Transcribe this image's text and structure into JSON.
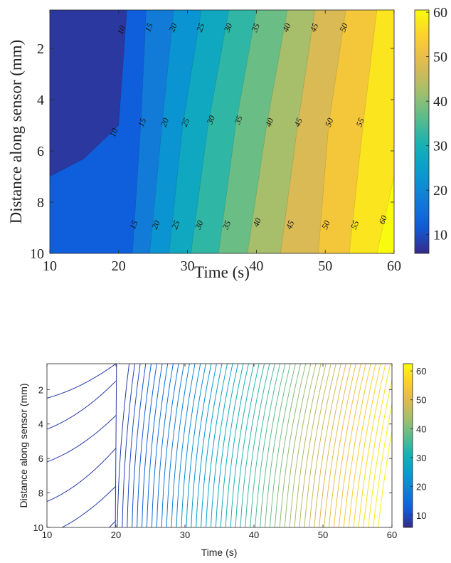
{
  "chart_data": [
    {
      "type": "contour-filled",
      "title": "",
      "xlabel": "Time (s)",
      "ylabel": "Distance along sensor (mm)",
      "xlim": [
        10,
        60
      ],
      "ylim": [
        0.5,
        10
      ],
      "y_reversed": true,
      "x_ticks": [
        "10",
        "20",
        "30",
        "40",
        "50",
        "60"
      ],
      "y_ticks": [
        "2",
        "4",
        "6",
        "8",
        "10"
      ],
      "colorbar_ticks": [
        "10",
        "20",
        "30",
        "40",
        "50",
        "60"
      ],
      "colorbar_range": [
        5.8,
        60.5
      ],
      "levels": [
        10,
        15,
        20,
        25,
        30,
        35,
        40,
        45,
        50,
        55,
        60
      ],
      "contour_lines": [
        {
          "level": 10,
          "points": [
            [
              21.2,
              0.5
            ],
            [
              20.0,
              5.0
            ],
            [
              15.0,
              6.3
            ],
            [
              10.0,
              7.0
            ]
          ]
        },
        {
          "level": 15,
          "points": [
            [
              24.0,
              0.5
            ],
            [
              23.2,
              5.0
            ],
            [
              22.0,
              10.0
            ]
          ]
        },
        {
          "level": 20,
          "points": [
            [
              28.0,
              0.5
            ],
            [
              26.3,
              5.0
            ],
            [
              24.5,
              10.0
            ]
          ]
        },
        {
          "level": 25,
          "points": [
            [
              32.0,
              0.5
            ],
            [
              29.3,
              5.0
            ],
            [
              27.3,
              10.0
            ]
          ]
        },
        {
          "level": 30,
          "points": [
            [
              36.0,
              0.5
            ],
            [
              33.0,
              5.0
            ],
            [
              30.5,
              10.0
            ]
          ]
        },
        {
          "level": 35,
          "points": [
            [
              40.0,
              0.5
            ],
            [
              37.0,
              5.0
            ],
            [
              34.5,
              10.0
            ]
          ]
        },
        {
          "level": 40,
          "points": [
            [
              44.5,
              0.5
            ],
            [
              41.5,
              5.0
            ],
            [
              38.7,
              10.0
            ]
          ]
        },
        {
          "level": 45,
          "points": [
            [
              48.5,
              0.5
            ],
            [
              46.0,
              5.0
            ],
            [
              43.5,
              10.0
            ]
          ]
        },
        {
          "level": 50,
          "points": [
            [
              53.0,
              0.5
            ],
            [
              50.5,
              5.0
            ],
            [
              49.0,
              10.0
            ]
          ]
        },
        {
          "level": 55,
          "points": [
            [
              57.5,
              0.5
            ],
            [
              55.5,
              5.0
            ],
            [
              53.5,
              10.0
            ]
          ]
        },
        {
          "level": 60,
          "points": [
            [
              60.5,
              0.5
            ],
            [
              60.0,
              7.0
            ],
            [
              57.5,
              10.0
            ]
          ]
        }
      ],
      "contour_labels": [
        {
          "text": "10",
          "x": 20.5,
          "y": 1.3
        },
        {
          "text": "15",
          "x": 24.5,
          "y": 1.2
        },
        {
          "text": "20",
          "x": 28.0,
          "y": 1.2
        },
        {
          "text": "25",
          "x": 32.0,
          "y": 1.2
        },
        {
          "text": "30",
          "x": 36.0,
          "y": 1.2
        },
        {
          "text": "35",
          "x": 40.0,
          "y": 1.2
        },
        {
          "text": "40",
          "x": 44.5,
          "y": 1.2
        },
        {
          "text": "45",
          "x": 48.5,
          "y": 1.2
        },
        {
          "text": "50",
          "x": 52.8,
          "y": 1.2
        },
        {
          "text": "10",
          "x": 19.4,
          "y": 5.3
        },
        {
          "text": "15",
          "x": 23.5,
          "y": 4.9
        },
        {
          "text": "20",
          "x": 26.8,
          "y": 4.9
        },
        {
          "text": "25",
          "x": 29.8,
          "y": 4.9
        },
        {
          "text": "30",
          "x": 33.5,
          "y": 4.8
        },
        {
          "text": "35",
          "x": 37.5,
          "y": 4.8
        },
        {
          "text": "40",
          "x": 42.0,
          "y": 4.9
        },
        {
          "text": "45",
          "x": 46.2,
          "y": 4.9
        },
        {
          "text": "50",
          "x": 50.7,
          "y": 4.9
        },
        {
          "text": "55",
          "x": 55.2,
          "y": 4.9
        },
        {
          "text": "15",
          "x": 22.3,
          "y": 8.9
        },
        {
          "text": "20",
          "x": 25.5,
          "y": 8.9
        },
        {
          "text": "25",
          "x": 28.4,
          "y": 8.9
        },
        {
          "text": "30",
          "x": 31.8,
          "y": 8.9
        },
        {
          "text": "35",
          "x": 35.8,
          "y": 8.9
        },
        {
          "text": "40",
          "x": 40.2,
          "y": 8.8
        },
        {
          "text": "45",
          "x": 45.0,
          "y": 8.9
        },
        {
          "text": "50",
          "x": 50.2,
          "y": 8.9
        },
        {
          "text": "55",
          "x": 54.4,
          "y": 8.9
        },
        {
          "text": "60",
          "x": 58.5,
          "y": 8.7
        }
      ]
    },
    {
      "type": "contour-lines",
      "title": "",
      "xlabel": "Time (s)",
      "ylabel": "Distance along sensor (mm)",
      "xlim": [
        10,
        60
      ],
      "ylim": [
        0.5,
        10
      ],
      "y_reversed": true,
      "x_ticks": [
        "10",
        "20",
        "30",
        "40",
        "50",
        "60"
      ],
      "y_ticks": [
        "2",
        "4",
        "6",
        "8",
        "10"
      ],
      "colorbar_ticks": [
        "10",
        "20",
        "30",
        "40",
        "50",
        "60"
      ],
      "colorbar_range": [
        5.8,
        62.5
      ],
      "vertical_line_count": 54,
      "vertical_line_level_range": [
        8,
        62
      ],
      "early_curves": [
        {
          "y_at_t10": 0.2,
          "y_at_t20": -0.5
        },
        {
          "y_at_t10": 2.5,
          "y_at_t20": 0.5
        },
        {
          "y_at_t10": 4.3,
          "y_at_t20": 1.5
        },
        {
          "y_at_t10": 6.2,
          "y_at_t20": 3.5
        },
        {
          "y_at_t10": 8.5,
          "y_at_t20": 5.4
        },
        {
          "y_at_t10": 10.4,
          "y_at_t20": 7.6
        },
        {
          "y_at_t10": 12.6,
          "y_at_t20": 9.6
        }
      ]
    }
  ]
}
